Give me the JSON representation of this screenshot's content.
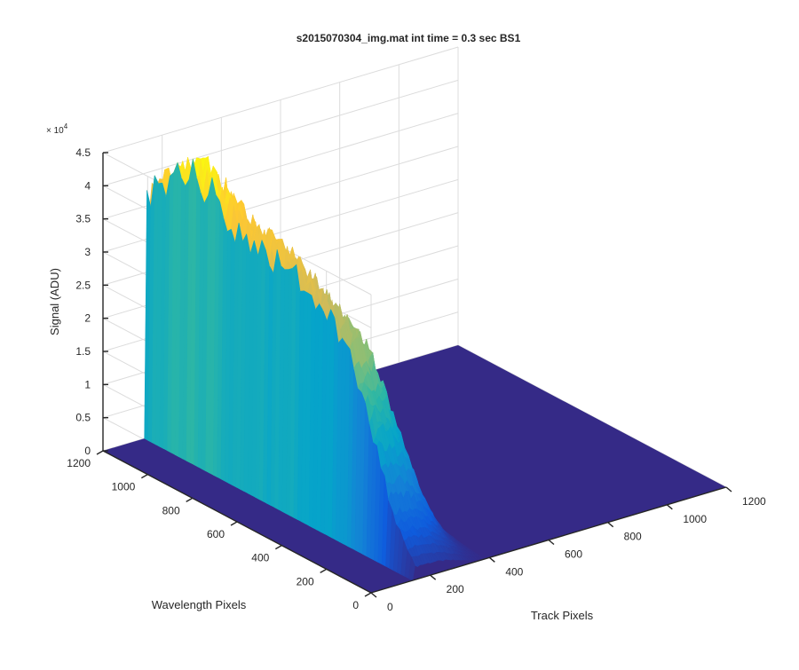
{
  "chart_data": {
    "type": "surface",
    "title": "s2015070304_img.mat int time = 0.3 sec   BS1",
    "xlabel": "Track Pixels",
    "ylabel": "Wavelength Pixels",
    "zlabel": "Signal (ADU)",
    "z_exponent_label": "× 10",
    "z_exponent_value": "4",
    "xlim": [
      0,
      1200
    ],
    "ylim": [
      0,
      1200
    ],
    "zlim": [
      0,
      45000
    ],
    "x_ticks": [
      "0",
      "200",
      "400",
      "600",
      "800",
      "1000",
      "1200"
    ],
    "y_ticks": [
      "0",
      "200",
      "400",
      "600",
      "800",
      "1000",
      "1200"
    ],
    "z_ticks": [
      "0",
      "0.5",
      "1",
      "1.5",
      "2",
      "2.5",
      "3",
      "3.5",
      "4",
      "4.5"
    ],
    "grid": true,
    "colormap": "parula",
    "colormap_stops": [
      "#352a87",
      "#0f5cdd",
      "#1481d6",
      "#06a4ca",
      "#2eb7a4",
      "#87bf77",
      "#d1bb59",
      "#fec832",
      "#f9fb0e"
    ],
    "signal_region": {
      "track_pixel_range": [
        140,
        380
      ],
      "wavelength_pixel_range": [
        0,
        1200
      ]
    },
    "signal_profile": {
      "wavelength_pixels": [
        0,
        100,
        200,
        300,
        400,
        500,
        600,
        700,
        800,
        900,
        1000,
        1100,
        1200
      ],
      "peak_signal": [
        2000,
        8000,
        20000,
        30000,
        33000,
        35000,
        37000,
        38000,
        39000,
        42000,
        44000,
        41000,
        36000
      ]
    }
  }
}
